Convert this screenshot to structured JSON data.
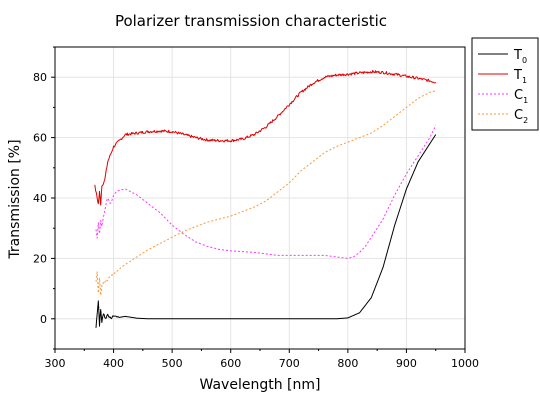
{
  "chart_data": {
    "type": "line",
    "title": "Polarizer transmission characteristic",
    "xlabel": "Wavelength [nm]",
    "ylabel": "Transmission [%]",
    "xlim": [
      300,
      1000
    ],
    "ylim": [
      -10,
      90
    ],
    "x_ticks": [
      300,
      400,
      500,
      600,
      700,
      800,
      900,
      1000
    ],
    "y_ticks": [
      0,
      20,
      40,
      60,
      80
    ],
    "grid": true,
    "legend_position": "outside-top-right",
    "series": [
      {
        "name": "T0",
        "name_main": "T",
        "name_sub": "0",
        "color": "#000000",
        "dash": "solid",
        "noise": "start",
        "points": [
          [
            370,
            -3
          ],
          [
            372,
            2
          ],
          [
            374,
            6
          ],
          [
            376,
            -2
          ],
          [
            378,
            3
          ],
          [
            380,
            -1
          ],
          [
            383,
            2
          ],
          [
            386,
            0
          ],
          [
            390,
            1.5
          ],
          [
            395,
            0
          ],
          [
            400,
            1
          ],
          [
            410,
            0.5
          ],
          [
            420,
            0.8
          ],
          [
            440,
            0.2
          ],
          [
            460,
            0
          ],
          [
            500,
            0
          ],
          [
            600,
            0
          ],
          [
            700,
            0
          ],
          [
            780,
            0
          ],
          [
            800,
            0.3
          ],
          [
            820,
            2
          ],
          [
            840,
            7
          ],
          [
            860,
            17
          ],
          [
            880,
            31
          ],
          [
            900,
            43
          ],
          [
            920,
            52
          ],
          [
            940,
            58
          ],
          [
            950,
            61
          ]
        ]
      },
      {
        "name": "T1",
        "name_main": "T",
        "name_sub": "1",
        "color": "#e00000",
        "dash": "solid",
        "noise": "fine",
        "points": [
          [
            368,
            44
          ],
          [
            372,
            40
          ],
          [
            374,
            38
          ],
          [
            376,
            42
          ],
          [
            378,
            38
          ],
          [
            380,
            44
          ],
          [
            385,
            46
          ],
          [
            390,
            52
          ],
          [
            400,
            57
          ],
          [
            410,
            59
          ],
          [
            420,
            61
          ],
          [
            440,
            61.5
          ],
          [
            460,
            62
          ],
          [
            480,
            62.2
          ],
          [
            500,
            62
          ],
          [
            520,
            61
          ],
          [
            540,
            60
          ],
          [
            560,
            59.2
          ],
          [
            580,
            59
          ],
          [
            600,
            59
          ],
          [
            620,
            59.5
          ],
          [
            640,
            61
          ],
          [
            660,
            63.5
          ],
          [
            680,
            67
          ],
          [
            700,
            71
          ],
          [
            720,
            75
          ],
          [
            740,
            78
          ],
          [
            760,
            80
          ],
          [
            780,
            80.7
          ],
          [
            800,
            81
          ],
          [
            820,
            81.4
          ],
          [
            840,
            81.8
          ],
          [
            860,
            81.6
          ],
          [
            880,
            81
          ],
          [
            900,
            80.3
          ],
          [
            920,
            79.6
          ],
          [
            940,
            78.8
          ],
          [
            950,
            78.3
          ]
        ]
      },
      {
        "name": "C1",
        "name_main": "C",
        "name_sub": "1",
        "color": "#ff33ff",
        "dash": "2,2",
        "noise": "start",
        "points": [
          [
            370,
            30
          ],
          [
            372,
            27
          ],
          [
            374,
            32
          ],
          [
            376,
            28
          ],
          [
            378,
            33
          ],
          [
            380,
            31
          ],
          [
            385,
            36
          ],
          [
            390,
            40
          ],
          [
            395,
            38
          ],
          [
            400,
            41
          ],
          [
            405,
            42
          ],
          [
            410,
            42.5
          ],
          [
            420,
            43
          ],
          [
            430,
            42
          ],
          [
            440,
            41
          ],
          [
            460,
            38
          ],
          [
            480,
            35
          ],
          [
            500,
            31
          ],
          [
            520,
            28
          ],
          [
            540,
            25.5
          ],
          [
            560,
            24
          ],
          [
            580,
            23
          ],
          [
            600,
            22.5
          ],
          [
            640,
            22
          ],
          [
            680,
            21
          ],
          [
            700,
            21
          ],
          [
            720,
            21
          ],
          [
            740,
            21
          ],
          [
            760,
            21
          ],
          [
            780,
            20.5
          ],
          [
            800,
            20
          ],
          [
            810,
            20.5
          ],
          [
            820,
            22
          ],
          [
            830,
            24
          ],
          [
            840,
            27
          ],
          [
            860,
            33
          ],
          [
            880,
            41
          ],
          [
            900,
            48
          ],
          [
            920,
            54
          ],
          [
            940,
            60
          ],
          [
            950,
            64
          ]
        ]
      },
      {
        "name": "C2",
        "name_main": "C",
        "name_sub": "2",
        "color": "#ff9933",
        "dash": "2,2",
        "noise": "start",
        "points": [
          [
            370,
            12
          ],
          [
            372,
            15
          ],
          [
            374,
            9
          ],
          [
            376,
            13
          ],
          [
            378,
            8
          ],
          [
            380,
            11
          ],
          [
            385,
            12.5
          ],
          [
            390,
            13
          ],
          [
            400,
            15
          ],
          [
            420,
            18
          ],
          [
            440,
            20.5
          ],
          [
            460,
            23
          ],
          [
            480,
            25
          ],
          [
            500,
            27
          ],
          [
            520,
            29
          ],
          [
            540,
            30.5
          ],
          [
            560,
            32
          ],
          [
            580,
            33
          ],
          [
            600,
            34
          ],
          [
            620,
            35.5
          ],
          [
            640,
            37
          ],
          [
            660,
            39
          ],
          [
            680,
            42
          ],
          [
            700,
            45
          ],
          [
            720,
            49
          ],
          [
            740,
            52
          ],
          [
            760,
            55
          ],
          [
            780,
            57
          ],
          [
            800,
            58.5
          ],
          [
            820,
            60
          ],
          [
            840,
            61.5
          ],
          [
            860,
            64
          ],
          [
            880,
            67
          ],
          [
            900,
            70
          ],
          [
            920,
            73
          ],
          [
            940,
            75
          ],
          [
            950,
            75.5
          ]
        ]
      }
    ]
  }
}
